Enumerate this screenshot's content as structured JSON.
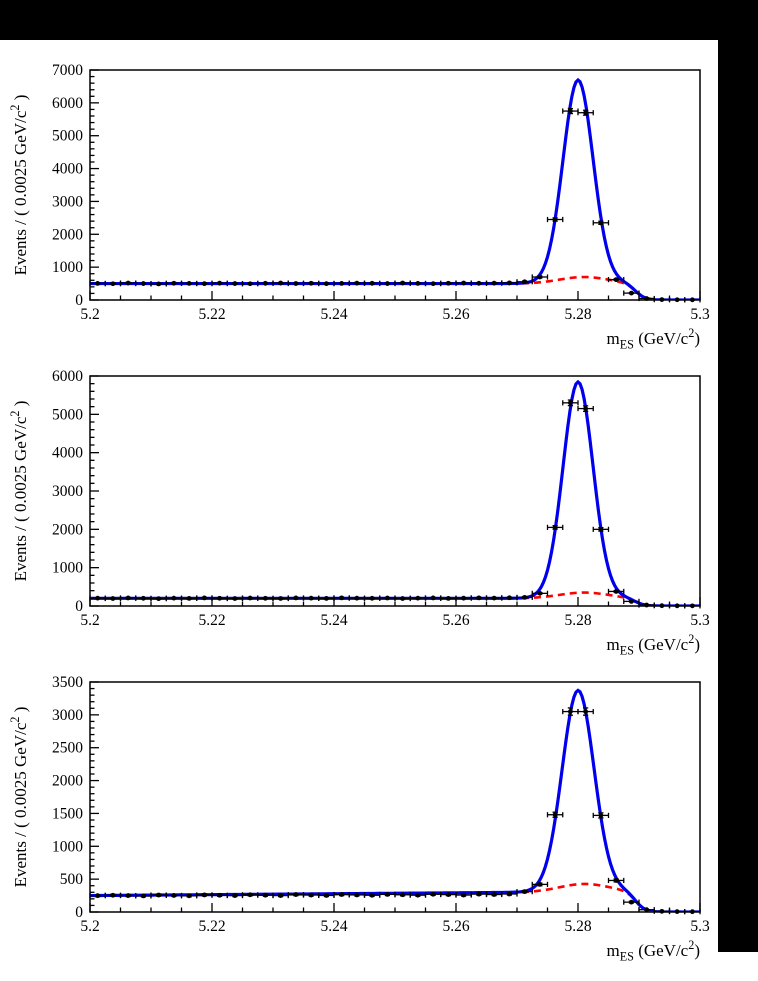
{
  "page": {
    "background_color": "#ffffff",
    "letterbox_color": "#000000"
  },
  "labels": {
    "xlabel_parts": [
      {
        "t": "m"
      },
      {
        "t": "ES",
        "sub": true
      },
      {
        "t": " (GeV/c"
      },
      {
        "t": "2",
        "sup": true
      },
      {
        "t": ")"
      }
    ],
    "ylabel_parts": [
      {
        "t": "Events / ( 0.0025 GeV/c"
      },
      {
        "t": "2",
        "sup": true
      },
      {
        "t": " )"
      }
    ]
  },
  "chart_data": [
    {
      "type": "line",
      "panel": "top",
      "title": "",
      "xlabel": "m_ES (GeV/c^2)",
      "ylabel": "Events / ( 0.0025 GeV/c^2 )",
      "xlim": [
        5.2,
        5.3
      ],
      "ylim": [
        0,
        7000
      ],
      "bin_width": 0.0025,
      "grid": false,
      "legend": false,
      "xticks": {
        "values": [
          5.2,
          5.22,
          5.24,
          5.26,
          5.28,
          5.3
        ],
        "labels": [
          "5.2",
          "5.22",
          "5.24",
          "5.26",
          "5.28",
          "5.3"
        ],
        "minor_step": 0.005
      },
      "yticks": {
        "values": [
          0,
          1000,
          2000,
          3000,
          4000,
          5000,
          6000,
          7000
        ],
        "labels": [
          "0",
          "1000",
          "2000",
          "3000",
          "4000",
          "5000",
          "6000",
          "7000"
        ],
        "minor_step": 200
      },
      "series": [
        {
          "name": "data",
          "role": "scatter",
          "marker": "filled-circle",
          "color": "#000000"
        },
        {
          "name": "signal + background fit",
          "role": "line",
          "style": "solid",
          "color": "#0000ee",
          "width": 3.2
        },
        {
          "name": "background fit",
          "role": "line",
          "style": "dashed",
          "color": "#ff0000",
          "width": 2.6
        }
      ],
      "fit": {
        "mean": 5.28,
        "sigma": 0.00245,
        "amplitude": 6000,
        "bkg_level": 500,
        "bkg_slope": 0,
        "bump_amp": 200,
        "bump_mean": 5.281,
        "bump_sigma": 0.004,
        "endpoint": 5.2895,
        "edge_width": 0.0008
      },
      "points": {
        "x_start": 5.20125,
        "x_step": 0.0025,
        "y": [
          505,
          495,
          515,
          500,
          490,
          510,
          505,
          498,
          512,
          500,
          495,
          508,
          515,
          502,
          510,
          498,
          505,
          512,
          508,
          500,
          515,
          505,
          498,
          510,
          515,
          508,
          512,
          520,
          555,
          700,
          2450,
          5750,
          5700,
          2350,
          620,
          210,
          45,
          12,
          8,
          5
        ]
      }
    },
    {
      "type": "line",
      "panel": "middle",
      "title": "",
      "xlabel": "m_ES (GeV/c^2)",
      "ylabel": "Events / ( 0.0025 GeV/c^2 )",
      "xlim": [
        5.2,
        5.3
      ],
      "ylim": [
        0,
        6000
      ],
      "bin_width": 0.0025,
      "grid": false,
      "legend": false,
      "xticks": {
        "values": [
          5.2,
          5.22,
          5.24,
          5.26,
          5.28,
          5.3
        ],
        "labels": [
          "5.2",
          "5.22",
          "5.24",
          "5.26",
          "5.28",
          "5.3"
        ],
        "minor_step": 0.005
      },
      "yticks": {
        "values": [
          0,
          1000,
          2000,
          3000,
          4000,
          5000,
          6000
        ],
        "labels": [
          "0",
          "1000",
          "2000",
          "3000",
          "4000",
          "5000",
          "6000"
        ],
        "minor_step": 200
      },
      "series": [
        {
          "name": "data",
          "role": "scatter",
          "marker": "filled-circle",
          "color": "#000000"
        },
        {
          "name": "signal + background fit",
          "role": "line",
          "style": "solid",
          "color": "#0000ee",
          "width": 3.2
        },
        {
          "name": "background fit",
          "role": "line",
          "style": "dashed",
          "color": "#ff0000",
          "width": 2.6
        }
      ],
      "fit": {
        "mean": 5.28,
        "sigma": 0.00245,
        "amplitude": 5500,
        "bkg_level": 200,
        "bkg_slope": 0,
        "bump_amp": 150,
        "bump_mean": 5.281,
        "bump_sigma": 0.004,
        "endpoint": 5.2895,
        "edge_width": 0.0008
      },
      "points": {
        "x_start": 5.20125,
        "x_step": 0.0025,
        "y": [
          205,
          195,
          210,
          200,
          192,
          205,
          198,
          210,
          202,
          195,
          208,
          200,
          196,
          210,
          205,
          198,
          212,
          204,
          200,
          208,
          195,
          205,
          210,
          198,
          204,
          212,
          206,
          215,
          225,
          330,
          2050,
          5300,
          5150,
          2000,
          380,
          120,
          25,
          8,
          5,
          4
        ]
      }
    },
    {
      "type": "line",
      "panel": "bottom",
      "title": "",
      "xlabel": "m_ES (GeV/c^2)",
      "ylabel": "Events / ( 0.0025 GeV/c^2 )",
      "xlim": [
        5.2,
        5.3
      ],
      "ylim": [
        0,
        3500
      ],
      "bin_width": 0.0025,
      "grid": false,
      "legend": false,
      "xticks": {
        "values": [
          5.2,
          5.22,
          5.24,
          5.26,
          5.28,
          5.3
        ],
        "labels": [
          "5.2",
          "5.22",
          "5.24",
          "5.26",
          "5.28",
          "5.3"
        ],
        "minor_step": 0.005
      },
      "yticks": {
        "values": [
          0,
          500,
          1000,
          1500,
          2000,
          2500,
          3000,
          3500
        ],
        "labels": [
          "0",
          "500",
          "1000",
          "1500",
          "2000",
          "2500",
          "3000",
          "3500"
        ],
        "minor_step": 100
      },
      "series": [
        {
          "name": "data",
          "role": "scatter",
          "marker": "filled-circle",
          "color": "#000000"
        },
        {
          "name": "signal + background fit",
          "role": "line",
          "style": "solid",
          "color": "#0000ee",
          "width": 3.2
        },
        {
          "name": "background fit",
          "role": "line",
          "style": "dashed",
          "color": "#ff0000",
          "width": 2.6
        }
      ],
      "fit": {
        "mean": 5.28,
        "sigma": 0.0026,
        "amplitude": 2950,
        "bkg_level": 250,
        "bkg_slope": 700,
        "bump_amp": 120,
        "bump_mean": 5.281,
        "bump_sigma": 0.004,
        "endpoint": 5.2895,
        "edge_width": 0.0008
      },
      "points": {
        "x_start": 5.20125,
        "x_step": 0.0025,
        "y": [
          248,
          255,
          250,
          245,
          258,
          252,
          246,
          260,
          255,
          250,
          262,
          256,
          250,
          265,
          258,
          252,
          266,
          260,
          255,
          268,
          262,
          256,
          270,
          265,
          258,
          272,
          266,
          274,
          310,
          420,
          1480,
          3050,
          3050,
          1470,
          480,
          150,
          35,
          10,
          6,
          5
        ]
      }
    }
  ]
}
